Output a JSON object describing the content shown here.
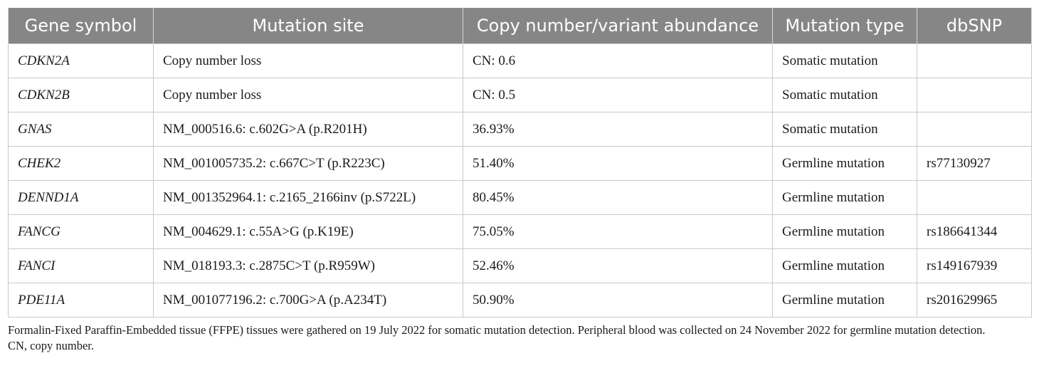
{
  "table": {
    "headers": [
      "Gene symbol",
      "Mutation site",
      "Copy number/variant abundance",
      "Mutation type",
      "dbSNP"
    ],
    "rows": [
      [
        "CDKN2A",
        "Copy number loss",
        "CN: 0.6",
        "Somatic mutation",
        ""
      ],
      [
        "CDKN2B",
        "Copy number loss",
        "CN: 0.5",
        "Somatic mutation",
        ""
      ],
      [
        "GNAS",
        "NM_000516.6: c.602G>A (p.R201H)",
        "36.93%",
        "Somatic mutation",
        ""
      ],
      [
        "CHEK2",
        "NM_001005735.2: c.667C>T (p.R223C)",
        "51.40%",
        "Germline mutation",
        "rs77130927"
      ],
      [
        "DENND1A",
        "NM_001352964.1: c.2165_2166inv (p.S722L)",
        "80.45%",
        "Germline mutation",
        ""
      ],
      [
        "FANCG",
        "NM_004629.1: c.55A>G (p.K19E)",
        "75.05%",
        "Germline mutation",
        "rs186641344"
      ],
      [
        "FANCI",
        "NM_018193.3: c.2875C>T (p.R959W)",
        "52.46%",
        "Germline mutation",
        "rs149167939"
      ],
      [
        "PDE11A",
        "NM_001077196.2: c.700G>A (p.A234T)",
        "50.90%",
        "Germline mutation",
        "rs201629965"
      ]
    ]
  },
  "footnotes": {
    "note1": "Formalin-Fixed Paraffin-Embedded tissue (FFPE) tissues were gathered on 19 July 2022 for somatic mutation detection. Peripheral blood was collected on 24 November 2022 for germline mutation detection.",
    "note2": "CN, copy number."
  },
  "colors": {
    "header_bg": "#868686",
    "header_text": "#ffffff",
    "grid": "#c9c9c9"
  }
}
